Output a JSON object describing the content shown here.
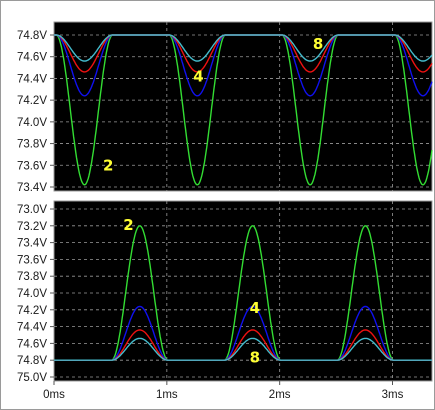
{
  "chart_data": [
    {
      "type": "line",
      "panel": "top",
      "xlabel": "",
      "ylabel": "",
      "xlim": [
        0,
        3.35
      ],
      "ylim": [
        73.4,
        74.85
      ],
      "yticks": [
        "74.8V",
        "74.6V",
        "74.4V",
        "74.2V",
        "74.0V",
        "73.8V",
        "73.6V",
        "73.4V"
      ],
      "grid": true,
      "period_ms": 1.0,
      "dip_center_ms": 0.27,
      "series": [
        {
          "color": "#33dd33",
          "baseline": 74.8,
          "peak": 73.42,
          "width_ms": 0.5
        },
        {
          "color": "#1010ee",
          "baseline": 74.8,
          "peak": 74.24,
          "width_ms": 0.5
        },
        {
          "color": "#ee1111",
          "baseline": 74.8,
          "peak": 74.46,
          "width_ms": 0.5
        },
        {
          "color": "#44bbcc",
          "baseline": 74.8,
          "peak": 74.56,
          "width_ms": 0.5
        }
      ],
      "annotations": [
        {
          "text": "2",
          "x": 0.48,
          "y": 73.55
        },
        {
          "text": "4",
          "x": 1.28,
          "y": 74.37
        },
        {
          "text": "8",
          "x": 2.34,
          "y": 74.67
        }
      ]
    },
    {
      "type": "line",
      "panel": "bottom",
      "xlabel": "",
      "ylabel": "",
      "xlim": [
        0,
        3.35
      ],
      "ylim": [
        73.0,
        75.0
      ],
      "yticks": [
        "73.0V",
        "73.2V",
        "73.4V",
        "73.6V",
        "73.8V",
        "74.0V",
        "74.2V",
        "74.4V",
        "74.6V",
        "74.8V",
        "75.0V"
      ],
      "y_inverted": true,
      "xticks": [
        "0ms",
        "1ms",
        "2ms",
        "3ms"
      ],
      "xtick_values": [
        0,
        1,
        2,
        3
      ],
      "grid": true,
      "period_ms": 1.0,
      "peak_center_ms": 0.76,
      "series": [
        {
          "color": "#33dd33",
          "baseline": 74.8,
          "peak": 73.2,
          "width_ms": 0.5
        },
        {
          "color": "#1010ee",
          "baseline": 74.8,
          "peak": 74.16,
          "width_ms": 0.5
        },
        {
          "color": "#ee1111",
          "baseline": 74.8,
          "peak": 74.44,
          "width_ms": 0.5
        },
        {
          "color": "#44bbcc",
          "baseline": 74.8,
          "peak": 74.54,
          "width_ms": 0.5
        }
      ],
      "annotations": [
        {
          "text": "2",
          "x": 0.66,
          "y": 73.25
        },
        {
          "text": "4",
          "x": 1.78,
          "y": 74.24
        },
        {
          "text": "8",
          "x": 1.78,
          "y": 74.83
        }
      ]
    }
  ],
  "colors": {
    "plot_bg": "#000000",
    "grid": "#9a9a9a",
    "frame": "#9a9a9a",
    "annotation": "#ffff33"
  }
}
